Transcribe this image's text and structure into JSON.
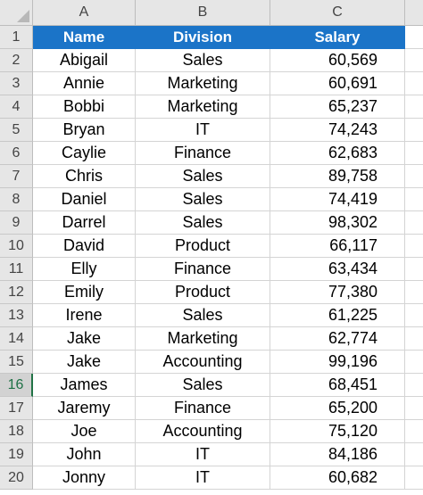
{
  "column_headers": [
    "A",
    "B",
    "C"
  ],
  "table_header": {
    "name": "Name",
    "division": "Division",
    "salary": "Salary"
  },
  "active_row": 16,
  "accent_color": "#1b74c8",
  "rows": [
    {
      "row": "2",
      "name": "Abigail",
      "division": "Sales",
      "salary": "60,569"
    },
    {
      "row": "3",
      "name": "Annie",
      "division": "Marketing",
      "salary": "60,691"
    },
    {
      "row": "4",
      "name": "Bobbi",
      "division": "Marketing",
      "salary": "65,237"
    },
    {
      "row": "5",
      "name": "Bryan",
      "division": "IT",
      "salary": "74,243"
    },
    {
      "row": "6",
      "name": "Caylie",
      "division": "Finance",
      "salary": "62,683"
    },
    {
      "row": "7",
      "name": "Chris",
      "division": "Sales",
      "salary": "89,758"
    },
    {
      "row": "8",
      "name": "Daniel",
      "division": "Sales",
      "salary": "74,419"
    },
    {
      "row": "9",
      "name": "Darrel",
      "division": "Sales",
      "salary": "98,302"
    },
    {
      "row": "10",
      "name": "David",
      "division": "Product",
      "salary": "66,117"
    },
    {
      "row": "11",
      "name": "Elly",
      "division": "Finance",
      "salary": "63,434"
    },
    {
      "row": "12",
      "name": "Emily",
      "division": "Product",
      "salary": "77,380"
    },
    {
      "row": "13",
      "name": "Irene",
      "division": "Sales",
      "salary": "61,225"
    },
    {
      "row": "14",
      "name": "Jake",
      "division": "Marketing",
      "salary": "62,774"
    },
    {
      "row": "15",
      "name": "Jake",
      "division": "Accounting",
      "salary": "99,196"
    },
    {
      "row": "16",
      "name": "James",
      "division": "Sales",
      "salary": "68,451"
    },
    {
      "row": "17",
      "name": "Jaremy",
      "division": "Finance",
      "salary": "65,200"
    },
    {
      "row": "18",
      "name": "Joe",
      "division": "Accounting",
      "salary": "75,120"
    },
    {
      "row": "19",
      "name": "John",
      "division": "IT",
      "salary": "84,186"
    },
    {
      "row": "20",
      "name": "Jonny",
      "division": "IT",
      "salary": "60,682"
    }
  ]
}
